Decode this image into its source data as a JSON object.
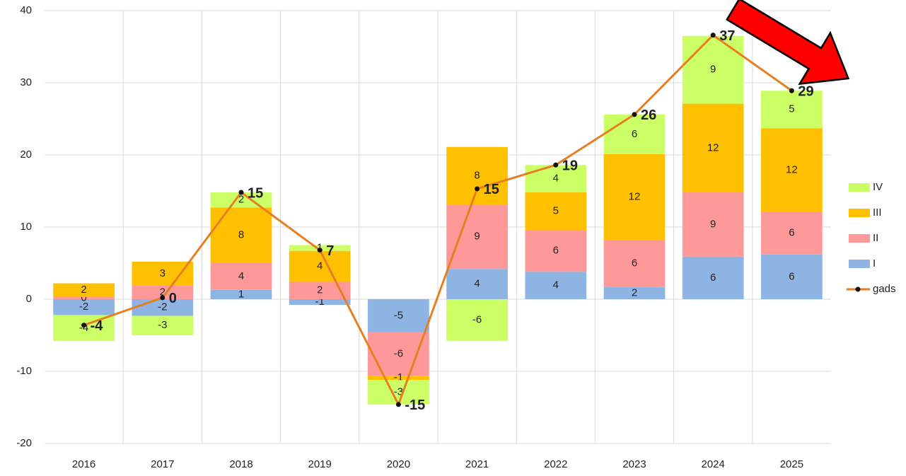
{
  "chart_data": {
    "type": "stacked_bar_line",
    "categories": [
      "2016",
      "2017",
      "2018",
      "2019",
      "2020",
      "2021",
      "2022",
      "2023",
      "2024",
      "2025"
    ],
    "series": [
      {
        "name": "I",
        "color": "#8eb4e3",
        "values": [
          -2.2,
          -2.3,
          1.3,
          -0.8,
          -4.6,
          4.2,
          3.8,
          1.7,
          5.9,
          6.2
        ],
        "value_labels": [
          "-2",
          "-2",
          "1",
          "-1",
          "-5",
          "4",
          "4",
          "2",
          "6",
          "6"
        ]
      },
      {
        "name": "II",
        "color": "#ff9999",
        "values": [
          0.3,
          1.9,
          3.7,
          2.4,
          -6.0,
          8.9,
          5.8,
          6.5,
          8.9,
          5.9
        ],
        "value_labels": [
          "0",
          "2",
          "4",
          "2",
          "-6",
          "9",
          "6",
          "6",
          "9",
          "6"
        ]
      },
      {
        "name": "III",
        "color": "#ffc000",
        "values": [
          1.9,
          3.3,
          7.7,
          4.3,
          -0.6,
          8.0,
          5.2,
          11.9,
          12.3,
          11.6
        ],
        "value_labels": [
          "2",
          "3",
          "8",
          "4",
          "-1",
          "8",
          "5",
          "12",
          "12",
          "12"
        ]
      },
      {
        "name": "IV",
        "color": "#ccff66",
        "values": [
          -3.6,
          -2.7,
          2.1,
          0.8,
          -3.4,
          -5.8,
          3.8,
          5.5,
          9.4,
          5.2
        ],
        "value_labels": [
          "-4",
          "-3",
          "2",
          "1",
          "-3",
          "-6",
          "4",
          "6",
          "9",
          "5"
        ]
      },
      {
        "name": "gads",
        "color": "#e67e22",
        "type": "line",
        "values": [
          -3.6,
          0.2,
          14.8,
          6.8,
          -14.6,
          15.3,
          18.6,
          25.6,
          36.6,
          28.9
        ],
        "value_labels": [
          "-4",
          "0",
          "15",
          "7",
          "-15",
          "15",
          "19",
          "26",
          "37",
          "29"
        ]
      }
    ],
    "ylim": [
      -20,
      40
    ],
    "yticks": [
      -20,
      -10,
      0,
      10,
      20,
      30,
      40
    ],
    "grid": true,
    "legend": "right"
  }
}
